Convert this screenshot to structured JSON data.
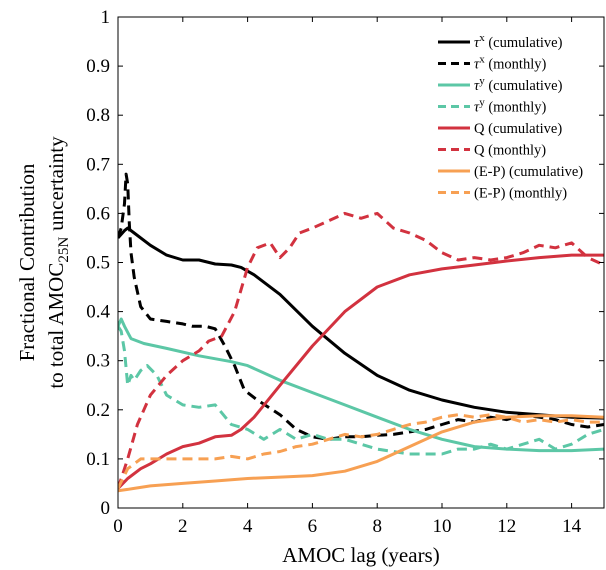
{
  "chart_data": {
    "type": "line",
    "xlabel": "AMOC lag (years)",
    "ylabel_line1": "Fractional Contribution",
    "ylabel_line2_prefix": "to total AMOC",
    "ylabel_line2_subscript": "25N",
    "ylabel_line2_suffix": "uncertainty",
    "xlim": [
      0,
      15
    ],
    "ylim": [
      0,
      1
    ],
    "xticks": [
      0,
      2,
      4,
      6,
      8,
      10,
      12,
      14
    ],
    "yticks": [
      0,
      0.1,
      0.2,
      0.3,
      0.4,
      0.5,
      0.6,
      0.7,
      0.8,
      0.9,
      1
    ],
    "xtick_labels": [
      "0",
      "2",
      "4",
      "6",
      "8",
      "10",
      "12",
      "14"
    ],
    "ytick_labels": [
      "0",
      "0.1",
      "0.2",
      "0.3",
      "0.4",
      "0.5",
      "0.6",
      "0.7",
      "0.8",
      "0.9",
      "1"
    ],
    "grid": false,
    "legend_position": "top-right",
    "series": [
      {
        "name": "τˣ (cumulative)",
        "label_main": "τ",
        "label_sup": "x",
        "label_rest": " (cumulative)",
        "color": "#000000",
        "dash": "solid",
        "x": [
          0.0,
          0.2,
          0.3,
          0.5,
          1.0,
          1.5,
          2.0,
          2.5,
          3.0,
          3.5,
          3.8,
          4.2,
          5.0,
          6.0,
          7.0,
          8.0,
          9.0,
          10.0,
          11.0,
          12.0,
          13.0,
          14.0,
          15.0
        ],
        "y": [
          0.55,
          0.565,
          0.57,
          0.56,
          0.535,
          0.515,
          0.505,
          0.505,
          0.497,
          0.495,
          0.49,
          0.475,
          0.435,
          0.37,
          0.315,
          0.27,
          0.24,
          0.22,
          0.205,
          0.195,
          0.19,
          0.185,
          0.183
        ]
      },
      {
        "name": "τˣ (monthly)",
        "label_main": "τ",
        "label_sup": "x",
        "label_rest": " (monthly)",
        "color": "#000000",
        "dash": "dashed",
        "x": [
          0.0,
          0.1,
          0.2,
          0.25,
          0.3,
          0.35,
          0.4,
          0.5,
          0.7,
          1.0,
          1.5,
          2.0,
          2.3,
          2.7,
          3.0,
          3.3,
          3.6,
          3.9,
          4.3,
          5.0,
          5.5,
          6.0,
          6.5,
          7.0,
          7.5,
          8.0,
          8.5,
          9.0,
          9.5,
          10.0,
          10.5,
          11.0,
          11.5,
          12.0,
          12.5,
          13.0,
          13.5,
          14.0,
          14.5,
          15.0
        ],
        "y": [
          0.55,
          0.57,
          0.62,
          0.68,
          0.66,
          0.58,
          0.52,
          0.47,
          0.41,
          0.385,
          0.38,
          0.375,
          0.37,
          0.37,
          0.365,
          0.33,
          0.29,
          0.24,
          0.22,
          0.19,
          0.16,
          0.145,
          0.14,
          0.145,
          0.145,
          0.148,
          0.15,
          0.155,
          0.16,
          0.17,
          0.18,
          0.175,
          0.185,
          0.18,
          0.19,
          0.185,
          0.18,
          0.17,
          0.165,
          0.17
        ]
      },
      {
        "name": "τʸ (cumulative)",
        "label_main": "τ",
        "label_sup": "y",
        "label_rest": " (cumulative)",
        "color": "#5CC7A6",
        "dash": "solid",
        "x": [
          0.0,
          0.1,
          0.2,
          0.4,
          0.8,
          1.5,
          2.5,
          3.5,
          4.0,
          5.0,
          6.0,
          7.0,
          8.0,
          9.0,
          10.0,
          11.0,
          12.0,
          13.0,
          14.0,
          15.0
        ],
        "y": [
          0.37,
          0.385,
          0.37,
          0.345,
          0.335,
          0.325,
          0.31,
          0.298,
          0.29,
          0.26,
          0.235,
          0.21,
          0.185,
          0.16,
          0.14,
          0.125,
          0.12,
          0.117,
          0.117,
          0.12
        ]
      },
      {
        "name": "τʸ (monthly)",
        "label_main": "τ",
        "label_sup": "y",
        "label_rest": " (monthly)",
        "color": "#5CC7A6",
        "dash": "dashed",
        "x": [
          0.0,
          0.1,
          0.2,
          0.3,
          0.4,
          0.5,
          0.7,
          0.9,
          1.2,
          1.5,
          2.0,
          2.5,
          3.0,
          3.5,
          4.0,
          4.5,
          5.0,
          5.5,
          6.0,
          6.5,
          7.0,
          8.0,
          9.0,
          10.0,
          10.5,
          11.0,
          11.5,
          12.0,
          12.5,
          13.0,
          13.5,
          14.0,
          14.5,
          15.0
        ],
        "y": [
          0.37,
          0.36,
          0.32,
          0.25,
          0.27,
          0.26,
          0.28,
          0.29,
          0.27,
          0.23,
          0.21,
          0.205,
          0.21,
          0.17,
          0.16,
          0.14,
          0.16,
          0.14,
          0.15,
          0.14,
          0.14,
          0.12,
          0.11,
          0.11,
          0.12,
          0.12,
          0.13,
          0.12,
          0.13,
          0.14,
          0.12,
          0.13,
          0.15,
          0.16
        ]
      },
      {
        "name": "Q (cumulative)",
        "label_main": "Q",
        "label_sup": "",
        "label_rest": " (cumulative)",
        "color": "#D2323F",
        "dash": "solid",
        "x": [
          0.0,
          0.3,
          0.7,
          1.0,
          1.5,
          2.0,
          2.5,
          3.0,
          3.5,
          3.8,
          4.2,
          5.0,
          6.0,
          7.0,
          8.0,
          9.0,
          10.0,
          11.0,
          12.0,
          13.0,
          14.0,
          15.0
        ],
        "y": [
          0.04,
          0.06,
          0.08,
          0.09,
          0.11,
          0.125,
          0.132,
          0.145,
          0.148,
          0.16,
          0.185,
          0.25,
          0.33,
          0.4,
          0.45,
          0.475,
          0.487,
          0.495,
          0.503,
          0.51,
          0.515,
          0.515
        ]
      },
      {
        "name": "Q (monthly)",
        "label_main": "Q",
        "label_sup": "",
        "label_rest": " (monthly)",
        "color": "#D2323F",
        "dash": "dashed",
        "x": [
          0.0,
          0.3,
          0.6,
          1.0,
          1.5,
          2.0,
          2.5,
          2.8,
          3.2,
          3.6,
          4.0,
          4.3,
          4.7,
          5.0,
          5.3,
          5.6,
          6.0,
          6.5,
          7.0,
          7.5,
          8.0,
          8.5,
          9.0,
          9.5,
          10.0,
          10.5,
          11.0,
          11.5,
          12.0,
          12.5,
          13.0,
          13.5,
          14.0,
          14.5,
          15.0
        ],
        "y": [
          0.04,
          0.1,
          0.17,
          0.23,
          0.27,
          0.3,
          0.32,
          0.34,
          0.35,
          0.4,
          0.49,
          0.53,
          0.54,
          0.51,
          0.53,
          0.56,
          0.57,
          0.585,
          0.6,
          0.59,
          0.6,
          0.57,
          0.56,
          0.545,
          0.52,
          0.505,
          0.51,
          0.505,
          0.51,
          0.52,
          0.535,
          0.53,
          0.54,
          0.51,
          0.495
        ]
      },
      {
        "name": "(E-P) (cumulative)",
        "label_main": "(E-P)",
        "label_sup": "",
        "label_rest": " (cumulative)",
        "color": "#F7A053",
        "dash": "solid",
        "x": [
          0.0,
          0.5,
          1.0,
          2.0,
          3.0,
          4.0,
          5.0,
          6.0,
          7.0,
          8.0,
          9.0,
          10.0,
          11.0,
          12.0,
          13.0,
          14.0,
          15.0
        ],
        "y": [
          0.035,
          0.04,
          0.045,
          0.05,
          0.055,
          0.06,
          0.063,
          0.066,
          0.075,
          0.095,
          0.125,
          0.155,
          0.175,
          0.185,
          0.188,
          0.188,
          0.185
        ]
      },
      {
        "name": "(E-P) (monthly)",
        "label_main": "(E-P)",
        "label_sup": "",
        "label_rest": " (monthly)",
        "color": "#F7A053",
        "dash": "dashed",
        "x": [
          0.0,
          0.3,
          0.7,
          1.0,
          1.5,
          2.0,
          2.5,
          3.0,
          3.5,
          4.0,
          4.5,
          5.0,
          5.5,
          6.0,
          6.5,
          7.0,
          7.5,
          8.0,
          8.5,
          9.0,
          9.5,
          10.0,
          10.5,
          11.0,
          11.5,
          12.0,
          12.5,
          13.0,
          13.5,
          14.0,
          14.5,
          15.0
        ],
        "y": [
          0.04,
          0.08,
          0.1,
          0.1,
          0.1,
          0.1,
          0.1,
          0.1,
          0.105,
          0.1,
          0.11,
          0.115,
          0.125,
          0.13,
          0.14,
          0.15,
          0.145,
          0.15,
          0.16,
          0.17,
          0.175,
          0.185,
          0.19,
          0.185,
          0.19,
          0.185,
          0.175,
          0.18,
          0.175,
          0.18,
          0.175,
          0.175
        ]
      }
    ]
  }
}
